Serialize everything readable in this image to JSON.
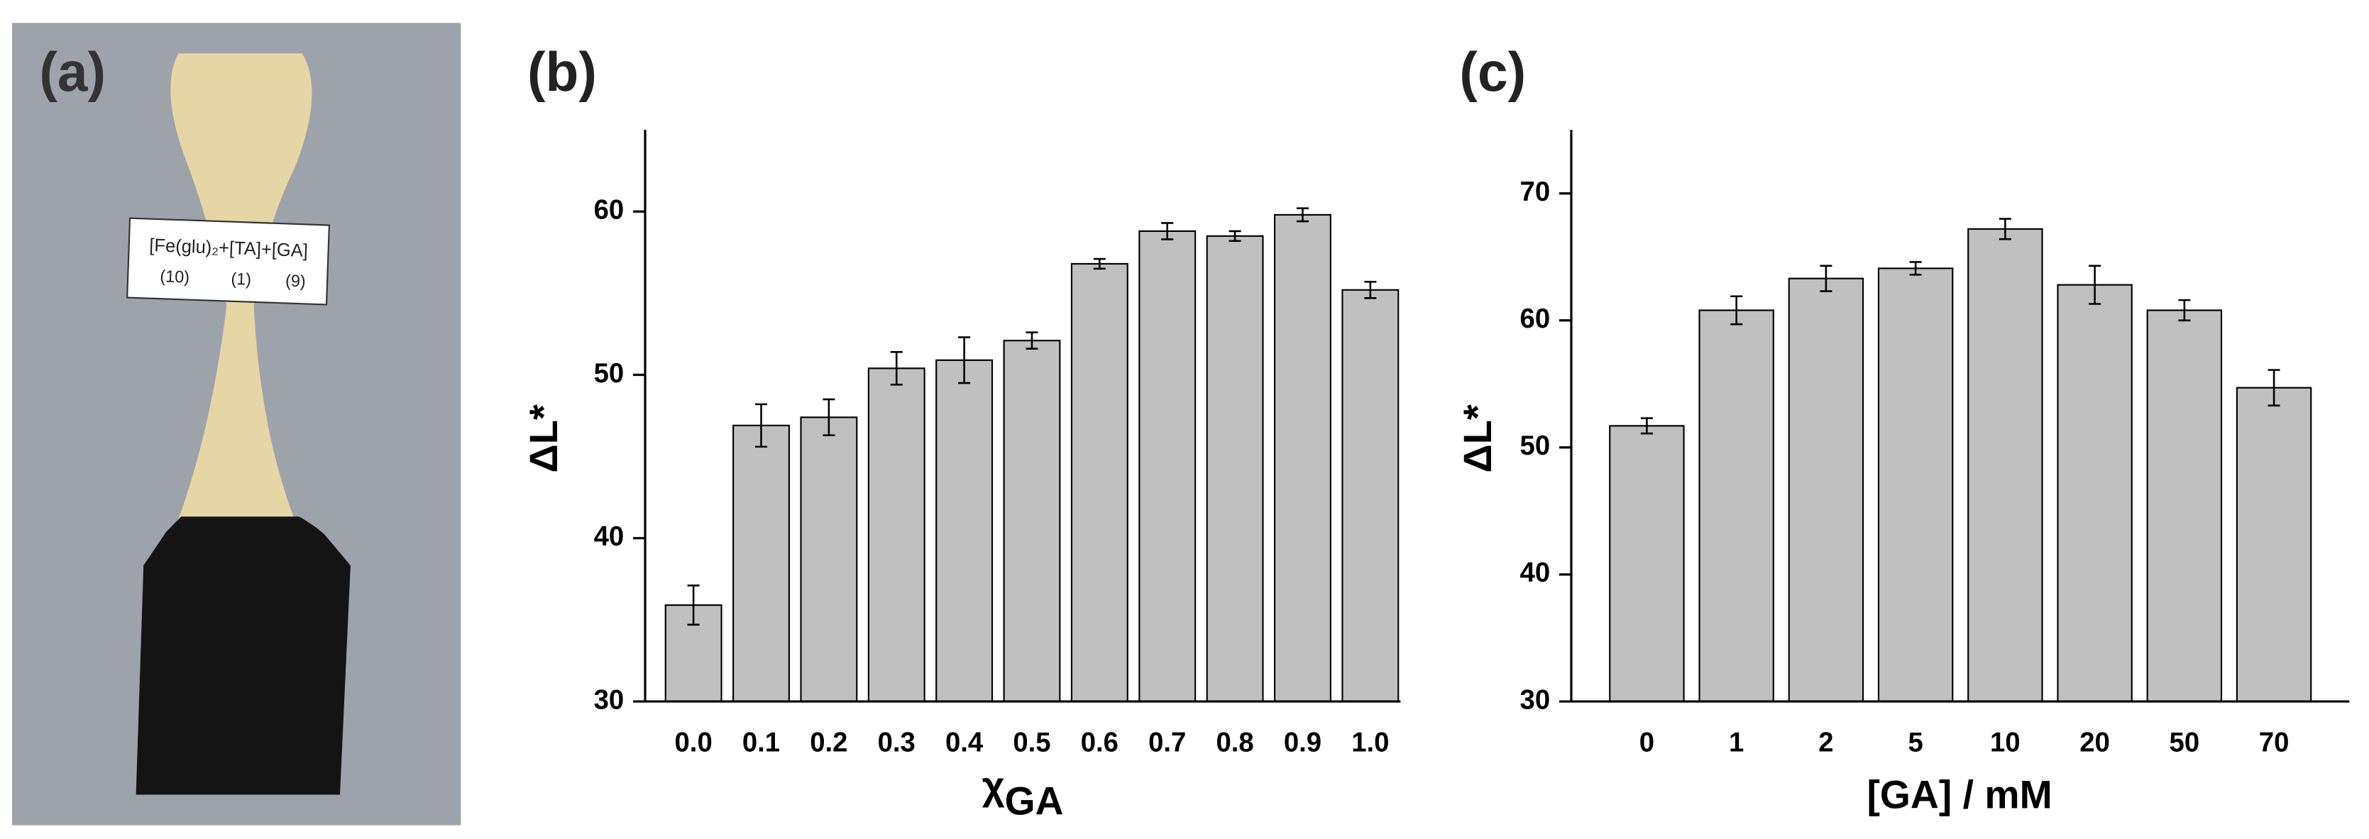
{
  "photo": {
    "label": "(a)",
    "card_text": "[Fe(glu)₂+[TA]+[GA]",
    "card_numbers": [
      "(10)",
      "(1)",
      "(9)"
    ]
  },
  "chart_data": [
    {
      "type": "bar",
      "panel_label": "(b)",
      "y_label": "ΔL*",
      "x_label": {
        "symbol": "χ",
        "subscript": "GA"
      },
      "categories": [
        "0.0",
        "0.1",
        "0.2",
        "0.3",
        "0.4",
        "0.5",
        "0.6",
        "0.7",
        "0.8",
        "0.9",
        "1.0"
      ],
      "values": [
        35.9,
        46.9,
        47.4,
        50.4,
        50.9,
        52.1,
        56.8,
        58.8,
        58.5,
        59.8,
        55.2
      ],
      "errors": [
        1.2,
        1.3,
        1.1,
        1.0,
        1.4,
        0.5,
        0.3,
        0.5,
        0.3,
        0.4,
        0.5
      ],
      "color": "#c0c0c0",
      "ylim": [
        30,
        65
      ],
      "yticks": [
        30,
        40,
        50,
        60
      ]
    },
    {
      "type": "bar",
      "panel_label": "(c)",
      "y_label": "ΔL*",
      "x_label": "[GA] / mM",
      "categories": [
        "0",
        "1",
        "2",
        "5",
        "10",
        "20",
        "50",
        "70"
      ],
      "values": [
        51.7,
        60.8,
        63.3,
        64.1,
        67.2,
        62.8,
        60.8,
        54.7
      ],
      "errors": [
        0.6,
        1.1,
        1.0,
        0.5,
        0.8,
        1.5,
        0.8,
        1.4
      ],
      "color": "#c0c0c0",
      "ylim": [
        30,
        75
      ],
      "yticks": [
        30,
        40,
        50,
        60,
        70
      ]
    }
  ]
}
